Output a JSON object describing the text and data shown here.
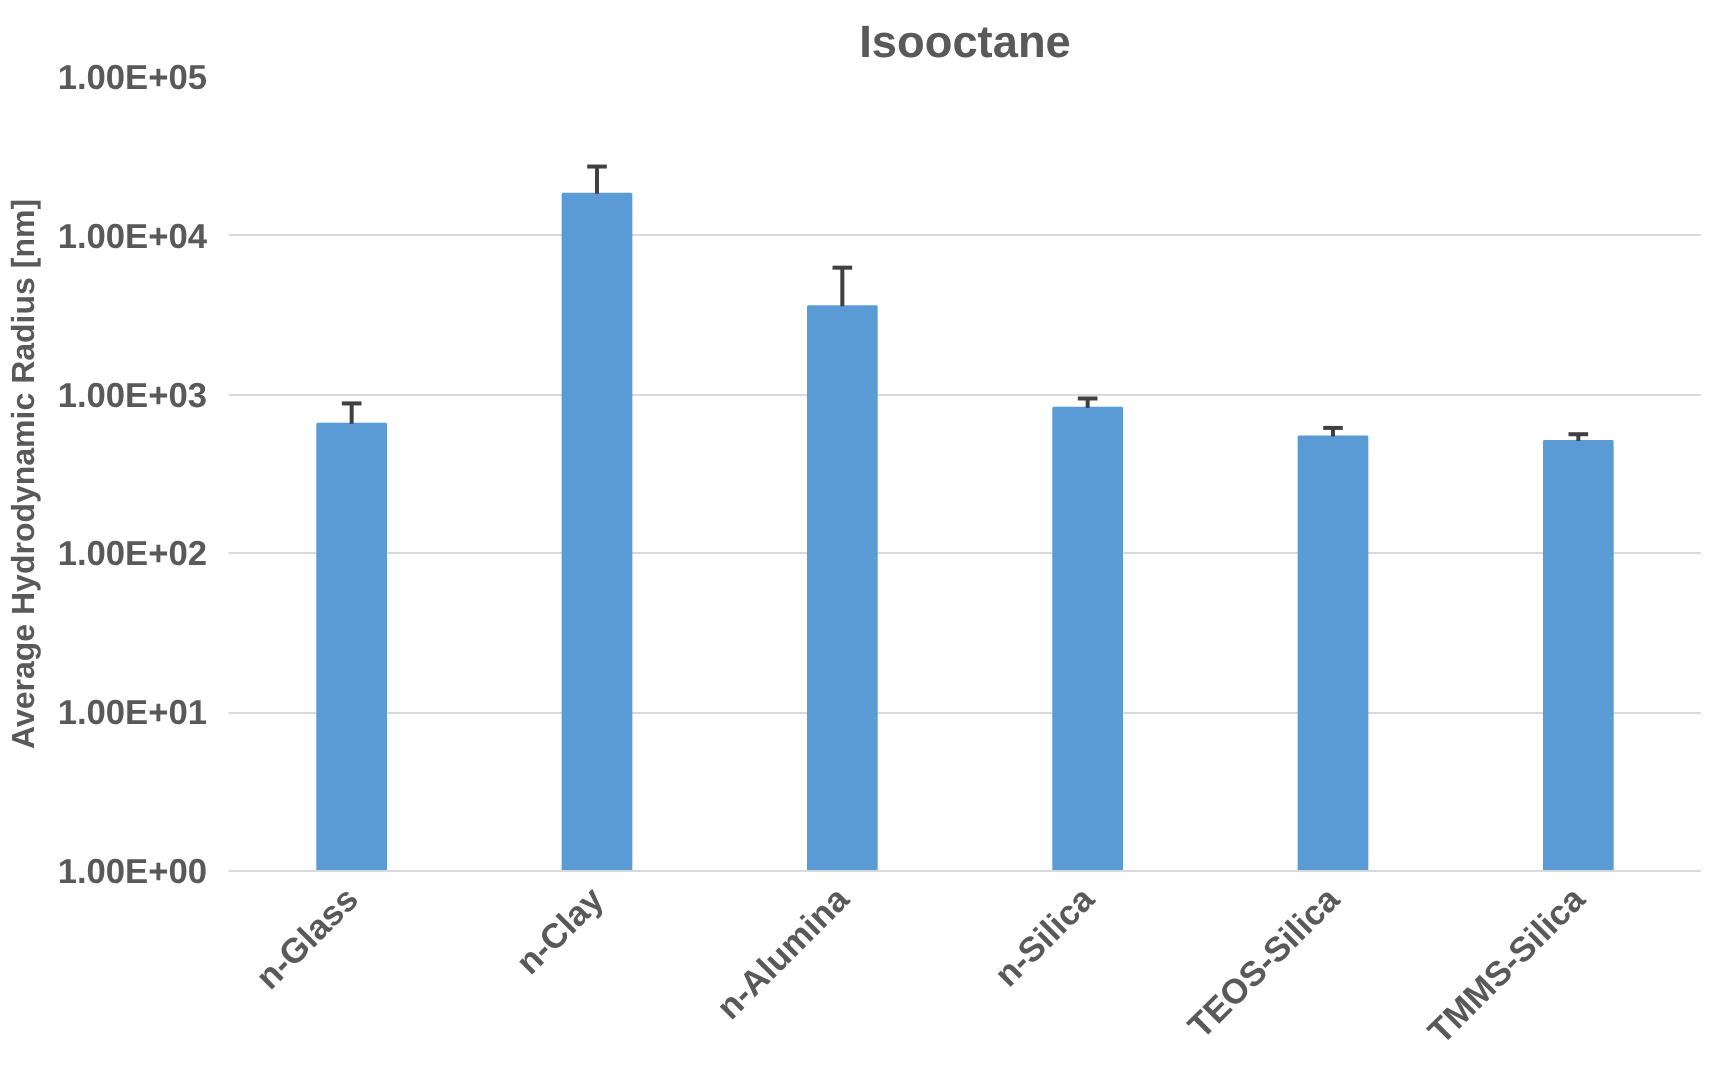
{
  "chart_data": {
    "type": "bar",
    "title": "Isooctane",
    "ylabel": "Average Hydrodynamic Radius [nm]",
    "categories": [
      "n-Glass",
      "n-Clay",
      "n-Alumina",
      "n-Silica",
      "TEOS-Silica",
      "TMMS-Silica"
    ],
    "values": [
      655,
      18400,
      3600,
      825,
      545,
      510
    ],
    "errors": [
      [
        655,
        880
      ],
      [
        18400,
        27300
      ],
      [
        3600,
        6300
      ],
      [
        825,
        945
      ],
      [
        545,
        617
      ],
      [
        510,
        563
      ]
    ],
    "color": "#5b9bd5",
    "log": true,
    "ylim": [
      1,
      100000
    ],
    "yticks": [
      {
        "value": 1,
        "label": "1.00E+00"
      },
      {
        "value": 10,
        "label": "1.00E+01"
      },
      {
        "value": 100,
        "label": "1.00E+02"
      },
      {
        "value": 1000,
        "label": "1.00E+03"
      },
      {
        "value": 10000,
        "label": "1.00E+04"
      },
      {
        "value": 100000,
        "label": "1.00E+05"
      }
    ],
    "grid": "y"
  }
}
